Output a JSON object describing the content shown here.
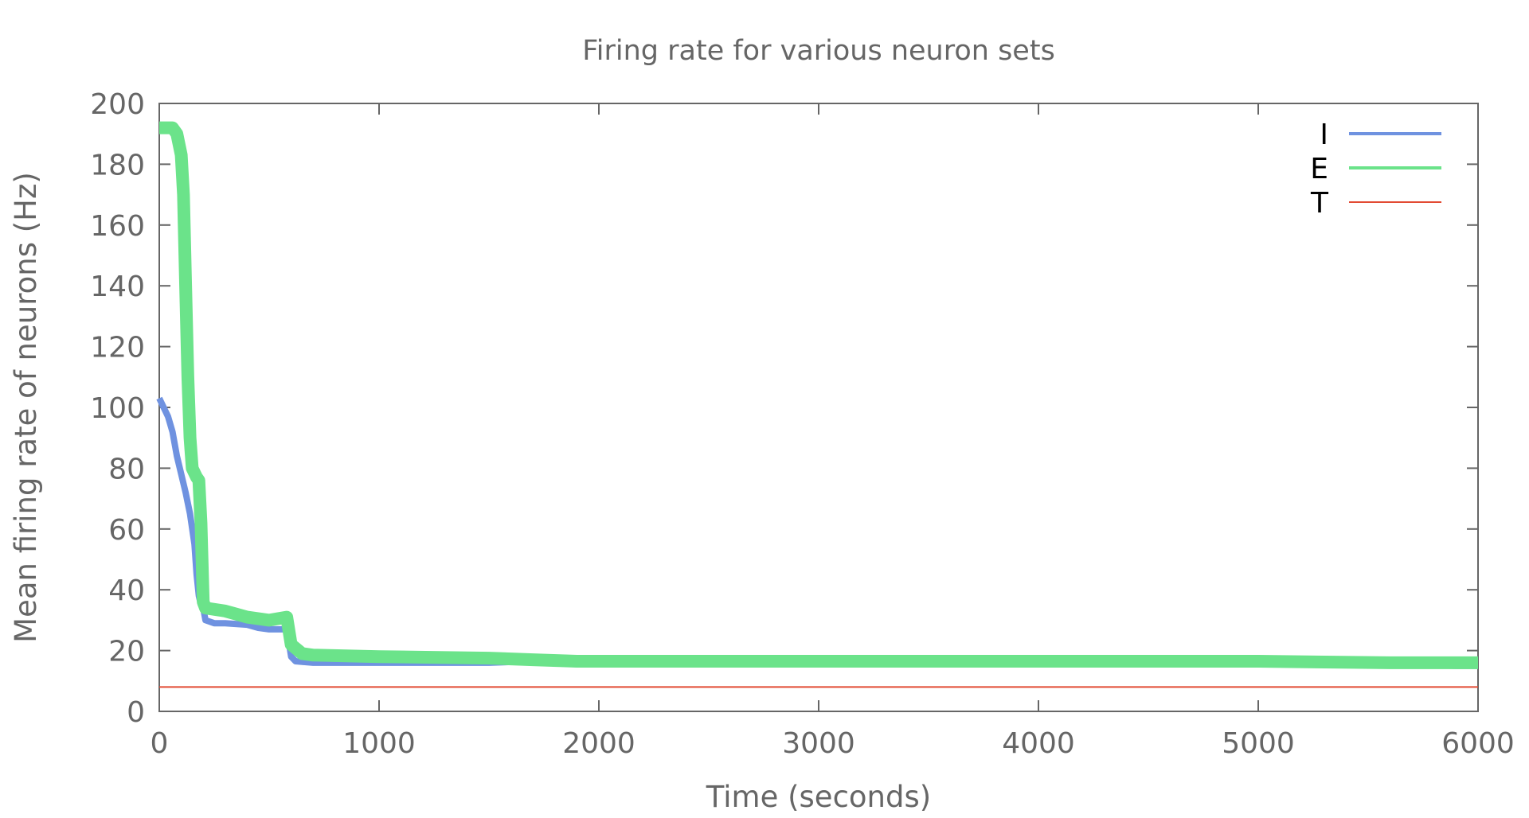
{
  "chart_data": {
    "type": "line",
    "title": "Firing rate for various neuron sets",
    "xlabel": "Time (seconds)",
    "ylabel": "Mean firing rate of neurons (Hz)",
    "xlim": [
      0,
      6000
    ],
    "ylim": [
      0,
      200
    ],
    "x_ticks": [
      "0",
      "1000",
      "2000",
      "3000",
      "4000",
      "5000",
      "6000"
    ],
    "y_ticks": [
      "0",
      "20",
      "40",
      "60",
      "80",
      "100",
      "120",
      "140",
      "160",
      "180",
      "200"
    ],
    "grid": false,
    "legend_position": "top-right",
    "series": [
      {
        "name": "I",
        "color": "#6f92e0",
        "points": [
          [
            0,
            103
          ],
          [
            20,
            100
          ],
          [
            40,
            97
          ],
          [
            60,
            92
          ],
          [
            80,
            84
          ],
          [
            100,
            78
          ],
          [
            120,
            72
          ],
          [
            140,
            65
          ],
          [
            160,
            55
          ],
          [
            170,
            45
          ],
          [
            180,
            38
          ],
          [
            190,
            35
          ],
          [
            200,
            34
          ],
          [
            210,
            30
          ],
          [
            250,
            29
          ],
          [
            300,
            29
          ],
          [
            400,
            28.5
          ],
          [
            450,
            27.5
          ],
          [
            500,
            27
          ],
          [
            550,
            27
          ],
          [
            580,
            27
          ],
          [
            600,
            18
          ],
          [
            620,
            16.5
          ],
          [
            700,
            16
          ],
          [
            1000,
            16
          ],
          [
            1500,
            16
          ],
          [
            1700,
            16.5
          ],
          [
            1900,
            15.5
          ],
          [
            2500,
            15.5
          ],
          [
            3000,
            15.5
          ],
          [
            4000,
            15.5
          ],
          [
            5000,
            15.5
          ],
          [
            5600,
            15.5
          ],
          [
            5900,
            15
          ],
          [
            6000,
            15
          ]
        ]
      },
      {
        "name": "E",
        "color": "#6be38a",
        "points": [
          [
            0,
            192
          ],
          [
            30,
            192
          ],
          [
            60,
            192
          ],
          [
            80,
            190
          ],
          [
            100,
            183
          ],
          [
            110,
            170
          ],
          [
            120,
            140
          ],
          [
            130,
            110
          ],
          [
            140,
            90
          ],
          [
            150,
            80
          ],
          [
            170,
            77
          ],
          [
            180,
            76
          ],
          [
            190,
            62
          ],
          [
            200,
            36
          ],
          [
            210,
            34
          ],
          [
            300,
            33
          ],
          [
            400,
            31
          ],
          [
            500,
            30
          ],
          [
            580,
            31
          ],
          [
            600,
            22
          ],
          [
            650,
            19
          ],
          [
            700,
            18.5
          ],
          [
            1000,
            18
          ],
          [
            1500,
            17.5
          ],
          [
            1700,
            17
          ],
          [
            1900,
            16.5
          ],
          [
            2500,
            16.5
          ],
          [
            3000,
            16.5
          ],
          [
            4000,
            16.5
          ],
          [
            5000,
            16.5
          ],
          [
            5600,
            16
          ],
          [
            5800,
            16
          ],
          [
            6000,
            16
          ]
        ]
      },
      {
        "name": "T",
        "color": "#e24a33",
        "points": [
          [
            0,
            8
          ],
          [
            6000,
            8
          ]
        ]
      }
    ]
  }
}
